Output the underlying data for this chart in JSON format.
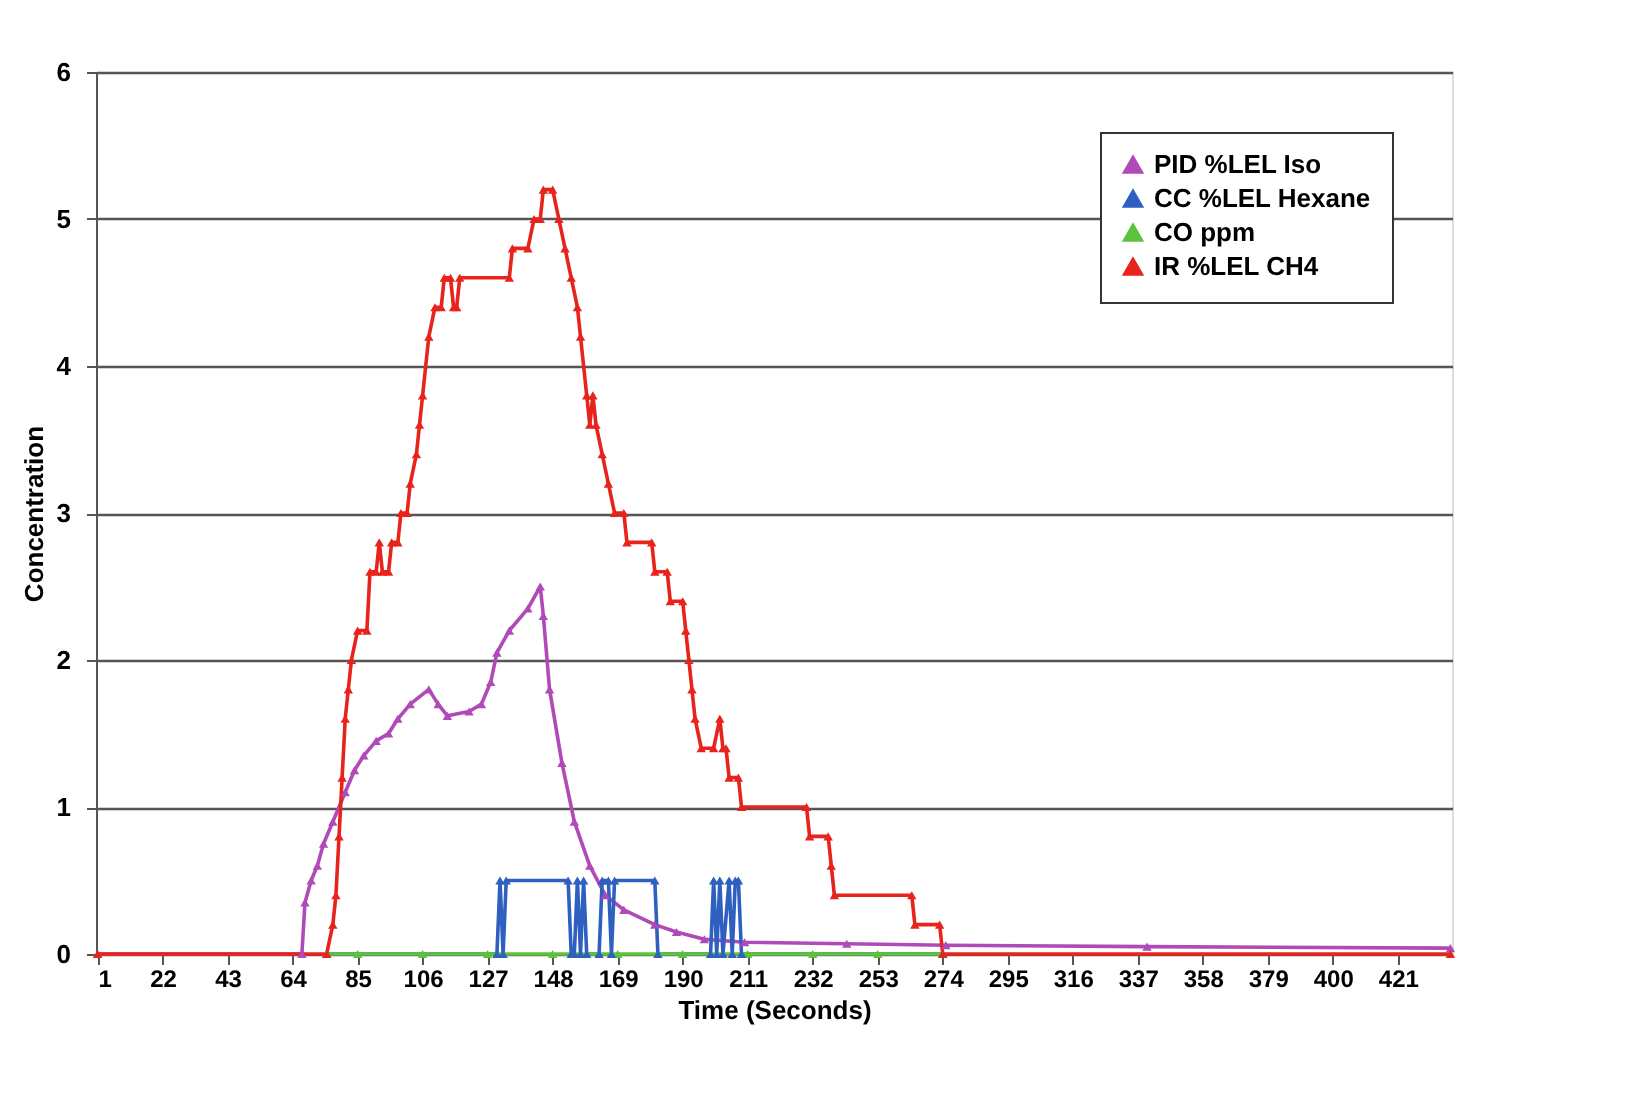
{
  "chart_data": {
    "type": "line",
    "xlabel": "Time (Seconds)",
    "ylabel": "Concentration",
    "xlim": [
      0.5,
      438.5
    ],
    "xticks": [
      1,
      22,
      43,
      64,
      85,
      106,
      127,
      148,
      169,
      190,
      211,
      232,
      253,
      274,
      295,
      316,
      337,
      358,
      379,
      400,
      421
    ],
    "ylim": [
      0,
      6
    ],
    "yticks": [
      0,
      1,
      2,
      3,
      4,
      5,
      6
    ],
    "grid": "y",
    "legend": "top right",
    "marker": "triangle",
    "line_style": "solid",
    "series": [
      {
        "name": "PID %LEL Iso",
        "color": "#b04ab8",
        "x": [
          1,
          67,
          68,
          70,
          72,
          74,
          77,
          81,
          84,
          87,
          91,
          95,
          98,
          102,
          108,
          111,
          114,
          121,
          125,
          128,
          130,
          134,
          140,
          144,
          145,
          147,
          151,
          155,
          160,
          165,
          171,
          181,
          188,
          197,
          210,
          243,
          275,
          340,
          438
        ],
        "values": [
          0,
          0,
          0.35,
          0.5,
          0.6,
          0.75,
          0.9,
          1.1,
          1.25,
          1.35,
          1.45,
          1.5,
          1.6,
          1.7,
          1.8,
          1.7,
          1.62,
          1.65,
          1.7,
          1.85,
          2.05,
          2.2,
          2.35,
          2.5,
          2.3,
          1.8,
          1.3,
          0.9,
          0.6,
          0.4,
          0.3,
          0.2,
          0.15,
          0.1,
          0.08,
          0.07,
          0.06,
          0.05,
          0.04
        ]
      },
      {
        "name": "CC %LEL Hexane",
        "color": "#2f5fc0",
        "x": [
          75,
          130,
          131,
          132,
          133,
          153,
          154,
          155,
          156,
          157,
          158,
          159,
          163,
          164,
          166,
          167,
          168,
          181,
          182,
          199,
          200,
          201,
          202,
          203,
          205,
          206,
          207,
          208,
          209,
          274
        ],
        "values": [
          0,
          0,
          0.5,
          0,
          0.5,
          0.5,
          0,
          0,
          0.5,
          0,
          0.5,
          0,
          0,
          0.5,
          0.5,
          0,
          0.5,
          0.5,
          0,
          0,
          0.5,
          0,
          0.5,
          0,
          0.5,
          0,
          0.5,
          0.5,
          0,
          0
        ]
      },
      {
        "name": "CO ppm",
        "color": "#5cc23a",
        "x": [
          75,
          85,
          106,
          127,
          148,
          169,
          190,
          211,
          232,
          253,
          274
        ],
        "values": [
          0,
          0,
          0,
          0,
          0,
          0,
          0,
          0,
          0,
          0,
          0
        ]
      },
      {
        "name": "IR %LEL CH4",
        "color": "#e8231c",
        "x": [
          1,
          75,
          77,
          78,
          79,
          80,
          81,
          82,
          83,
          85,
          88,
          89,
          91,
          92,
          93,
          95,
          96,
          98,
          99,
          101,
          102,
          104,
          105,
          106,
          108,
          110,
          112,
          113,
          115,
          116,
          117,
          118,
          134,
          135,
          140,
          142,
          144,
          145,
          148,
          150,
          152,
          154,
          156,
          157,
          159,
          160,
          161,
          162,
          164,
          166,
          168,
          171,
          172,
          180,
          181,
          185,
          186,
          190,
          191,
          192,
          193,
          194,
          196,
          200,
          202,
          203,
          204,
          205,
          208,
          209,
          230,
          231,
          237,
          238,
          239,
          264,
          265,
          273,
          274,
          438
        ],
        "values": [
          0,
          0,
          0.2,
          0.4,
          0.8,
          1.2,
          1.6,
          1.8,
          2.0,
          2.2,
          2.2,
          2.6,
          2.6,
          2.8,
          2.6,
          2.6,
          2.8,
          2.8,
          3.0,
          3.0,
          3.2,
          3.4,
          3.6,
          3.8,
          4.2,
          4.4,
          4.4,
          4.6,
          4.6,
          4.4,
          4.4,
          4.6,
          4.6,
          4.8,
          4.8,
          5.0,
          5.0,
          5.2,
          5.2,
          5.0,
          4.8,
          4.6,
          4.4,
          4.2,
          3.8,
          3.6,
          3.8,
          3.6,
          3.4,
          3.2,
          3.0,
          3.0,
          2.8,
          2.8,
          2.6,
          2.6,
          2.4,
          2.4,
          2.2,
          2.0,
          1.8,
          1.6,
          1.4,
          1.4,
          1.6,
          1.4,
          1.4,
          1.2,
          1.2,
          1.0,
          1.0,
          0.8,
          0.8,
          0.6,
          0.4,
          0.4,
          0.2,
          0.2,
          0,
          0
        ]
      }
    ]
  }
}
